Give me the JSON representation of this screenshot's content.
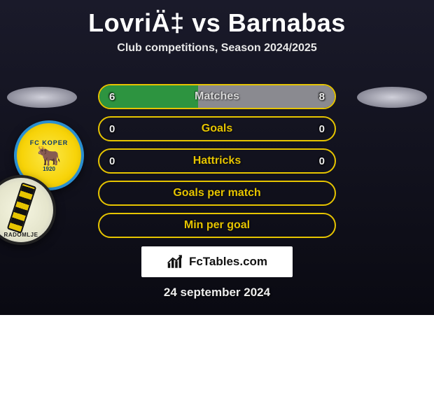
{
  "title": "LovriÄ‡ vs Barnabas",
  "subtitle": "Club competitions, Season 2024/2025",
  "date": "24 september 2024",
  "brand": {
    "label": "FcTables.com"
  },
  "stats": {
    "rows": [
      {
        "label": "Matches",
        "left": "6",
        "right": "8",
        "left_pct": 42,
        "right_pct": 58,
        "border": "#e6c400",
        "left_fill": "#2d9440",
        "right_fill": "#8a8a90",
        "label_color": "#d8d8d8"
      },
      {
        "label": "Goals",
        "left": "0",
        "right": "0",
        "left_pct": 0,
        "right_pct": 0,
        "border": "#e6c400",
        "left_fill": "#2d9440",
        "right_fill": "#8a8a90",
        "label_color": "#e6c400"
      },
      {
        "label": "Hattricks",
        "left": "0",
        "right": "0",
        "left_pct": 0,
        "right_pct": 0,
        "border": "#e6c400",
        "left_fill": "#2d9440",
        "right_fill": "#8a8a90",
        "label_color": "#e6c400"
      },
      {
        "label": "Goals per match",
        "left": "",
        "right": "",
        "left_pct": 0,
        "right_pct": 0,
        "border": "#e6c400",
        "left_fill": "#2d9440",
        "right_fill": "#8a8a90",
        "label_color": "#e6c400"
      },
      {
        "label": "Min per goal",
        "left": "",
        "right": "",
        "left_pct": 0,
        "right_pct": 0,
        "border": "#e6c400",
        "left_fill": "#2d9440",
        "right_fill": "#8a8a90",
        "label_color": "#e6c400"
      }
    ]
  },
  "clubs": {
    "left": {
      "top_text": "FC KOPER",
      "year": "1920"
    },
    "right": {
      "bottom_text": "RADOMLJE"
    }
  },
  "colors": {
    "card_bg_top": "#1a1a2a",
    "card_bg_bottom": "#0a0a12",
    "title_color": "#ffffff",
    "subtitle_color": "#e8e8e8"
  }
}
